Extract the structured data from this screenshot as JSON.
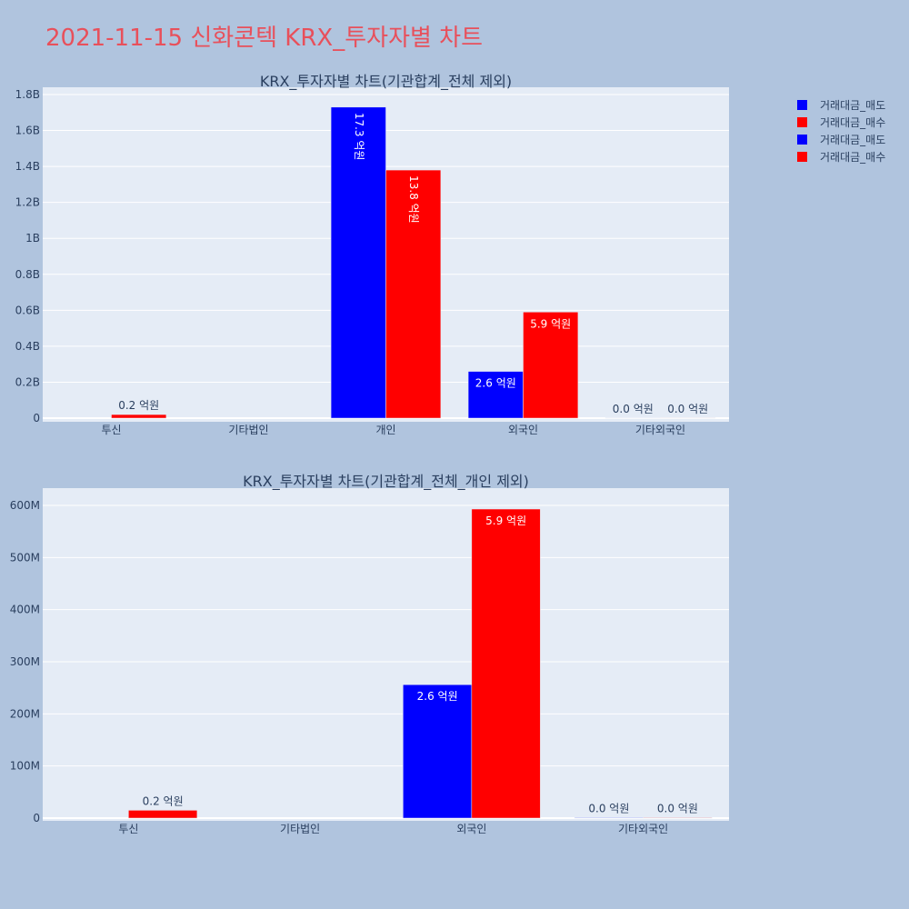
{
  "title": "2021-11-15 신화콘텍 KRX_투자자별 차트",
  "legend": {
    "placement": "top-right",
    "items": [
      {
        "label": "거래대금_매도",
        "color": "#0000ff"
      },
      {
        "label": "거래대금_매수",
        "color": "#ff0000"
      },
      {
        "label": "거래대금_매도",
        "color": "#0000ff"
      },
      {
        "label": "거래대금_매수",
        "color": "#ff0000"
      }
    ]
  },
  "colors": {
    "background": "#b0c4de",
    "plot_bg": "#e5ecf6",
    "sell": "#0000ff",
    "buy": "#ff0000",
    "title": "#e8505b"
  },
  "chart_data": [
    {
      "type": "bar",
      "title": "KRX_투자자별 차트(기관합계_전체 제외)",
      "categories": [
        "투신",
        "기타법인",
        "개인",
        "외국인",
        "기타외국인"
      ],
      "ylim": [
        0,
        1800000000
      ],
      "yticks": [
        0,
        200000000,
        400000000,
        600000000,
        800000000,
        1000000000,
        1200000000,
        1400000000,
        1600000000,
        1800000000
      ],
      "ytick_labels": [
        "0",
        "0.2B",
        "0.4B",
        "0.6B",
        "0.8B",
        "1B",
        "1.2B",
        "1.4B",
        "1.6B",
        "1.8B"
      ],
      "grid": true,
      "series": [
        {
          "name": "거래대금_매도",
          "color": "#0000ff",
          "values": [
            0,
            0,
            1730000000,
            260000000,
            1000000
          ],
          "labels": [
            "",
            "",
            "17.3 억원",
            "2.6 억원",
            "0.0 억원"
          ]
        },
        {
          "name": "거래대금_매수",
          "color": "#ff0000",
          "values": [
            20000000,
            0,
            1380000000,
            590000000,
            1000000
          ],
          "labels": [
            "0.2 억원",
            "",
            "13.8 억원",
            "5.9 억원",
            "0.0 억원"
          ]
        }
      ]
    },
    {
      "type": "bar",
      "title": "KRX_투자자별 차트(기관합계_전체_개인 제외)",
      "categories": [
        "투신",
        "기타법인",
        "외국인",
        "기타외국인"
      ],
      "ylim": [
        0,
        630000000
      ],
      "yticks": [
        0,
        100000000,
        200000000,
        300000000,
        400000000,
        500000000,
        600000000
      ],
      "ytick_labels": [
        "0",
        "100M",
        "200M",
        "300M",
        "400M",
        "500M",
        "600M"
      ],
      "grid": true,
      "series": [
        {
          "name": "거래대금_매도",
          "color": "#0000ff",
          "values": [
            0,
            0,
            256000000,
            1000000
          ],
          "labels": [
            "",
            "",
            "2.6 억원",
            "0.0 억원"
          ]
        },
        {
          "name": "거래대금_매수",
          "color": "#ff0000",
          "values": [
            15000000,
            0,
            593000000,
            1000000
          ],
          "labels": [
            "0.2 억원",
            "",
            "5.9 억원",
            "0.0 억원"
          ]
        }
      ]
    }
  ]
}
